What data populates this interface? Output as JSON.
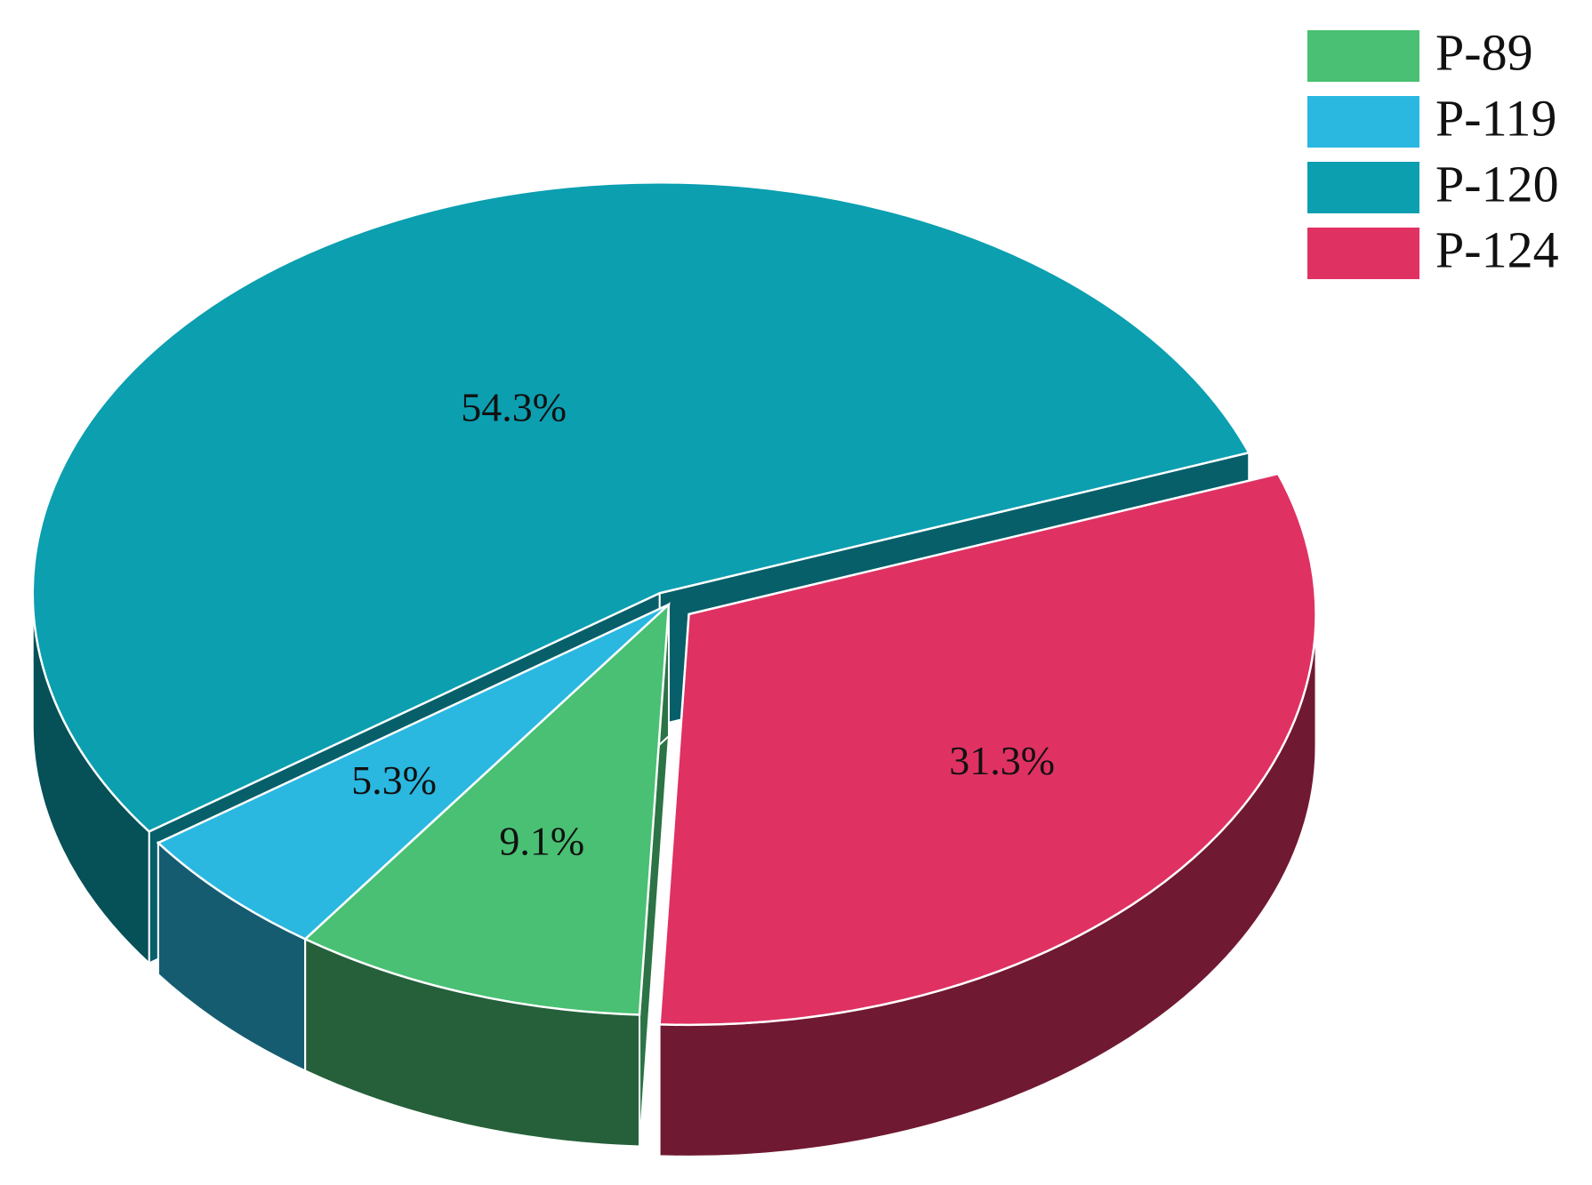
{
  "chart_data": {
    "type": "pie",
    "categories": [
      "P-89",
      "P-119",
      "P-120",
      "P-124"
    ],
    "values": [
      9.1,
      5.3,
      54.3,
      31.3
    ],
    "value_labels": [
      "9.1%",
      "5.3%",
      "54.3%",
      "31.3%"
    ],
    "colors": [
      "#49c073",
      "#2ab8e1",
      "#0b9fb0",
      "#e03163"
    ],
    "legend": "top-right"
  }
}
